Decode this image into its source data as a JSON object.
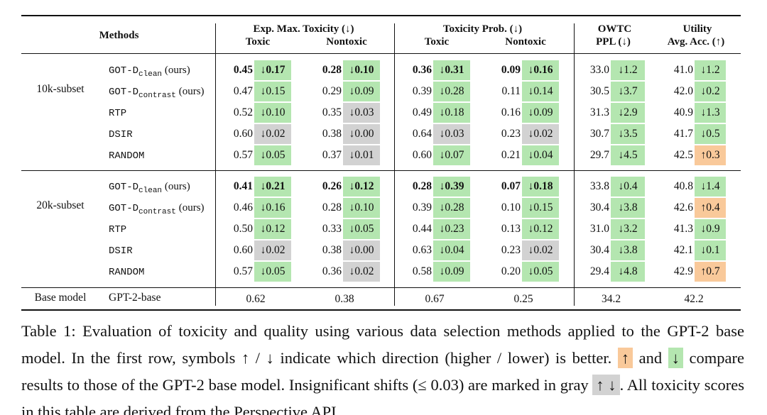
{
  "shades": {
    "green": "#b4e6b0",
    "gray": "#d2d2d2",
    "orange": "#f9c99a"
  },
  "table": {
    "header": {
      "methods": "Methods",
      "groups": [
        {
          "title": "Exp. Max. Toxicity (↓)",
          "cols": [
            "Toxic",
            "Nontoxic"
          ]
        },
        {
          "title": "Toxicity Prob. (↓)",
          "cols": [
            "Toxic",
            "Nontoxic"
          ]
        },
        {
          "title": "OWTC",
          "cols": [
            "PPL (↓)"
          ]
        },
        {
          "title": "Utility",
          "cols": [
            "Avg. Acc. (↑)"
          ]
        }
      ]
    },
    "sections": [
      {
        "label": "10k-subset",
        "rows": [
          {
            "method": {
              "name": "GOT-D",
              "sub": "clean",
              "note": "(ours)"
            },
            "cells": [
              {
                "value": "0.45",
                "delta": "↓0.17",
                "shade": "green",
                "bold": true
              },
              {
                "value": "0.28",
                "delta": "↓0.10",
                "shade": "green",
                "bold": true
              },
              {
                "value": "0.36",
                "delta": "↓0.31",
                "shade": "green",
                "bold": true
              },
              {
                "value": "0.09",
                "delta": "↓0.16",
                "shade": "green",
                "bold": true
              },
              {
                "value": "33.0",
                "delta": "↓1.2",
                "shade": "green"
              },
              {
                "value": "41.0",
                "delta": "↓1.2",
                "shade": "green"
              }
            ]
          },
          {
            "method": {
              "name": "GOT-D",
              "sub": "contrast",
              "note": "(ours)"
            },
            "cells": [
              {
                "value": "0.47",
                "delta": "↓0.15",
                "shade": "green"
              },
              {
                "value": "0.29",
                "delta": "↓0.09",
                "shade": "green"
              },
              {
                "value": "0.39",
                "delta": "↓0.28",
                "shade": "green"
              },
              {
                "value": "0.11",
                "delta": "↓0.14",
                "shade": "green"
              },
              {
                "value": "30.5",
                "delta": "↓3.7",
                "shade": "green"
              },
              {
                "value": "42.0",
                "delta": "↓0.2",
                "shade": "green"
              }
            ]
          },
          {
            "method": {
              "name": "RTP"
            },
            "cells": [
              {
                "value": "0.52",
                "delta": "↓0.10",
                "shade": "green"
              },
              {
                "value": "0.35",
                "delta": "↓0.03",
                "shade": "gray"
              },
              {
                "value": "0.49",
                "delta": "↓0.18",
                "shade": "green"
              },
              {
                "value": "0.16",
                "delta": "↓0.09",
                "shade": "green"
              },
              {
                "value": "31.3",
                "delta": "↓2.9",
                "shade": "green"
              },
              {
                "value": "40.9",
                "delta": "↓1.3",
                "shade": "green"
              }
            ]
          },
          {
            "method": {
              "name": "DSIR"
            },
            "cells": [
              {
                "value": "0.60",
                "delta": "↓0.02",
                "shade": "gray"
              },
              {
                "value": "0.38",
                "delta": "↓0.00",
                "shade": "gray"
              },
              {
                "value": "0.64",
                "delta": "↓0.03",
                "shade": "gray"
              },
              {
                "value": "0.23",
                "delta": "↓0.02",
                "shade": "gray"
              },
              {
                "value": "30.7",
                "delta": "↓3.5",
                "shade": "green"
              },
              {
                "value": "41.7",
                "delta": "↓0.5",
                "shade": "green"
              }
            ]
          },
          {
            "method": {
              "name": "RANDOM"
            },
            "cells": [
              {
                "value": "0.57",
                "delta": "↓0.05",
                "shade": "green"
              },
              {
                "value": "0.37",
                "delta": "↓0.01",
                "shade": "gray"
              },
              {
                "value": "0.60",
                "delta": "↓0.07",
                "shade": "green"
              },
              {
                "value": "0.21",
                "delta": "↓0.04",
                "shade": "green"
              },
              {
                "value": "29.7",
                "delta": "↓4.5",
                "shade": "green"
              },
              {
                "value": "42.5",
                "delta": "↑0.3",
                "shade": "orange"
              }
            ]
          }
        ]
      },
      {
        "label": "20k-subset",
        "rows": [
          {
            "method": {
              "name": "GOT-D",
              "sub": "clean",
              "note": "(ours)"
            },
            "cells": [
              {
                "value": "0.41",
                "delta": "↓0.21",
                "shade": "green",
                "bold": true
              },
              {
                "value": "0.26",
                "delta": "↓0.12",
                "shade": "green",
                "bold": true
              },
              {
                "value": "0.28",
                "delta": "↓0.39",
                "shade": "green",
                "bold": true
              },
              {
                "value": "0.07",
                "delta": "↓0.18",
                "shade": "green",
                "bold": true
              },
              {
                "value": "33.8",
                "delta": "↓0.4",
                "shade": "green"
              },
              {
                "value": "40.8",
                "delta": "↓1.4",
                "shade": "green"
              }
            ]
          },
          {
            "method": {
              "name": "GOT-D",
              "sub": "contrast",
              "note": "(ours)"
            },
            "cells": [
              {
                "value": "0.46",
                "delta": "↓0.16",
                "shade": "green"
              },
              {
                "value": "0.28",
                "delta": "↓0.10",
                "shade": "green"
              },
              {
                "value": "0.39",
                "delta": "↓0.28",
                "shade": "green"
              },
              {
                "value": "0.10",
                "delta": "↓0.15",
                "shade": "green"
              },
              {
                "value": "30.4",
                "delta": "↓3.8",
                "shade": "green"
              },
              {
                "value": "42.6",
                "delta": "↑0.4",
                "shade": "orange"
              }
            ]
          },
          {
            "method": {
              "name": "RTP"
            },
            "cells": [
              {
                "value": "0.50",
                "delta": "↓0.12",
                "shade": "green"
              },
              {
                "value": "0.33",
                "delta": "↓0.05",
                "shade": "green"
              },
              {
                "value": "0.44",
                "delta": "↓0.23",
                "shade": "green"
              },
              {
                "value": "0.13",
                "delta": "↓0.12",
                "shade": "green"
              },
              {
                "value": "31.0",
                "delta": "↓3.2",
                "shade": "green"
              },
              {
                "value": "41.3",
                "delta": "↓0.9",
                "shade": "green"
              }
            ]
          },
          {
            "method": {
              "name": "DSIR"
            },
            "cells": [
              {
                "value": "0.60",
                "delta": "↓0.02",
                "shade": "gray"
              },
              {
                "value": "0.38",
                "delta": "↓0.00",
                "shade": "gray"
              },
              {
                "value": "0.63",
                "delta": "↓0.04",
                "shade": "green"
              },
              {
                "value": "0.23",
                "delta": "↓0.02",
                "shade": "gray"
              },
              {
                "value": "30.4",
                "delta": "↓3.8",
                "shade": "green"
              },
              {
                "value": "42.1",
                "delta": "↓0.1",
                "shade": "green"
              }
            ]
          },
          {
            "method": {
              "name": "RANDOM"
            },
            "cells": [
              {
                "value": "0.57",
                "delta": "↓0.05",
                "shade": "green"
              },
              {
                "value": "0.36",
                "delta": "↓0.02",
                "shade": "gray"
              },
              {
                "value": "0.58",
                "delta": "↓0.09",
                "shade": "green"
              },
              {
                "value": "0.20",
                "delta": "↓0.05",
                "shade": "green"
              },
              {
                "value": "29.4",
                "delta": "↓4.8",
                "shade": "green"
              },
              {
                "value": "42.9",
                "delta": "↑0.7",
                "shade": "orange"
              }
            ]
          }
        ]
      }
    ],
    "base": {
      "label": "Base model",
      "method": "GPT-2-base",
      "values": [
        "0.62",
        "0.38",
        "0.67",
        "0.25",
        "34.2",
        "42.2"
      ]
    }
  },
  "caption": [
    {
      "text": "Table 1: Evaluation of toxicity and quality using various data selection methods applied to the GPT-2 base model. In the first row, symbols ↑ / ↓ indicate which direction (higher / lower) is better. "
    },
    {
      "text": "↑",
      "shade": "orange"
    },
    {
      "text": " and "
    },
    {
      "text": "↓",
      "shade": "green"
    },
    {
      "text": " compare results to those of the GPT-2 base model. Insignificant shifts (≤ 0.03) are marked in gray "
    },
    {
      "text": "↑ ↓",
      "shade": "gray"
    },
    {
      "text": ". All toxicity scores in this table are derived from the Perspective API."
    }
  ]
}
